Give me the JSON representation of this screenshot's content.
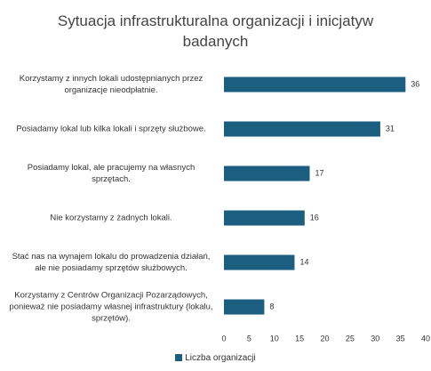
{
  "chart_data": {
    "type": "bar",
    "orientation": "horizontal",
    "title": "Sytuacja infrastrukturalna organizacji i inicjatyw badanych",
    "categories": [
      "Korzystamy z innych lokali udostępnianych przez organizacje nieodpłatnie.",
      "Posiadamy lokal lub kilka lokali i sprzęty służbowe.",
      "Posiadamy lokal, ale pracujemy na własnych sprzętach.",
      "Nie korzystamy z żadnych lokali.",
      "Stać nas na wynajem lokalu do prowadzenia działań, ale nie posiadamy sprzętów służbowych.",
      "Korzystamy z Centrów Organizacji Pozarządowych, ponieważ nie posiadamy własnej infrastruktury (lokalu, sprzętów)."
    ],
    "series": [
      {
        "name": "Liczba organizacji",
        "color": "#1b5e80",
        "values": [
          36,
          31,
          17,
          16,
          14,
          8
        ]
      }
    ],
    "xlim": [
      0,
      40
    ],
    "xticks": [
      0,
      5,
      10,
      15,
      20,
      25,
      30,
      35,
      40
    ],
    "grid": false,
    "legend": "bottom"
  }
}
